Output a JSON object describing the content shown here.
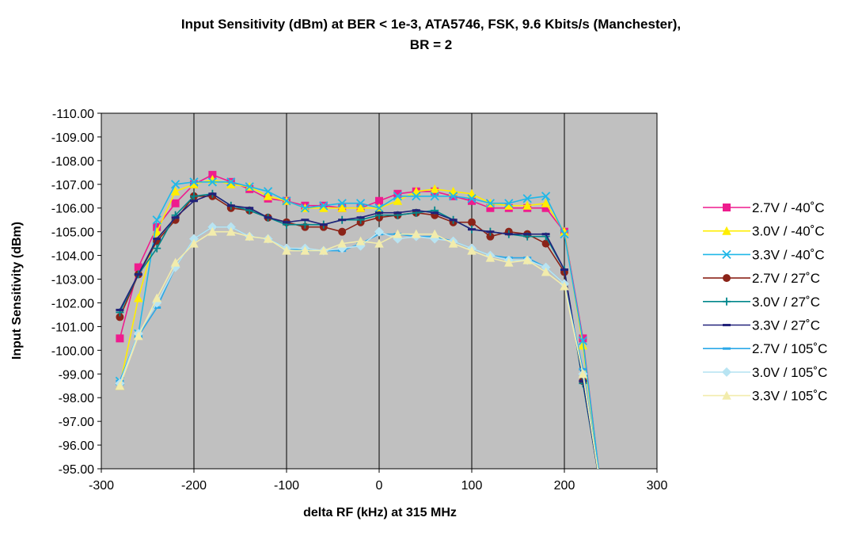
{
  "chart_data": {
    "type": "line",
    "title_line1": "Input Sensitivity (dBm) at BER < 1e-3, ATA5746, FSK, 9.6 Kbits/s (Manchester),",
    "title_line2": "BR = 2",
    "xlabel": "delta RF (kHz) at 315 MHz",
    "ylabel": "Input Sensitivity (dBm)",
    "xlim": [
      -300,
      300
    ],
    "ylim": [
      -95,
      -110
    ],
    "y_reversed": true,
    "x_ticks": [
      "-300",
      "-200",
      "-100",
      "0",
      "100",
      "200",
      "300"
    ],
    "x_tick_values": [
      -300,
      -200,
      -100,
      0,
      100,
      200,
      300
    ],
    "y_ticks": [
      "-110.00",
      "-109.00",
      "-108.00",
      "-107.00",
      "-106.00",
      "-105.00",
      "-104.00",
      "-103.00",
      "-102.00",
      "-101.00",
      "-100.00",
      "-99.00",
      "-98.00",
      "-97.00",
      "-96.00",
      "-95.00"
    ],
    "y_tick_values": [
      -110,
      -109,
      -108,
      -107,
      -106,
      -105,
      -104,
      -103,
      -102,
      -101,
      -100,
      -99,
      -98,
      -97,
      -96,
      -95
    ],
    "grid": "vertical",
    "plot_background": "#c0c0c0",
    "legend_position": "right",
    "x": [
      -280,
      -260,
      -240,
      -220,
      -200,
      -180,
      -160,
      -140,
      -120,
      -100,
      -80,
      -60,
      -40,
      -20,
      0,
      20,
      40,
      60,
      80,
      100,
      120,
      140,
      160,
      180,
      200,
      220,
      240
    ],
    "series": [
      {
        "name": "2.7V / -40˚C",
        "color": "#ee1c8e",
        "marker": "square",
        "values": [
          -100.5,
          -103.5,
          -105.2,
          -106.2,
          -107.0,
          -107.4,
          -107.1,
          -106.8,
          -106.4,
          -106.3,
          -106.1,
          -106.1,
          -106.0,
          -106.0,
          -106.3,
          -106.6,
          -106.7,
          -106.7,
          -106.5,
          -106.3,
          -106.0,
          -106.0,
          -106.0,
          -106.0,
          -105.0,
          -100.5,
          -94.0
        ]
      },
      {
        "name": "3.0V / -40˚C",
        "color": "#ffee00",
        "marker": "triangle",
        "values": [
          -98.5,
          -102.2,
          -105.0,
          -106.7,
          -107.0,
          -107.2,
          -107.0,
          -106.9,
          -106.5,
          -106.3,
          -106.0,
          -106.0,
          -106.0,
          -106.0,
          -106.0,
          -106.3,
          -106.7,
          -106.8,
          -106.7,
          -106.6,
          -106.2,
          -106.1,
          -106.1,
          -106.2,
          -105.0,
          -100.2,
          -94.0
        ]
      },
      {
        "name": "3.3V / -40˚C",
        "color": "#20b8e8",
        "marker": "x",
        "values": [
          -98.7,
          -100.7,
          -105.5,
          -107.0,
          -107.1,
          -107.1,
          -107.1,
          -106.9,
          -106.7,
          -106.3,
          -106.0,
          -106.1,
          -106.2,
          -106.2,
          -106.0,
          -106.5,
          -106.5,
          -106.5,
          -106.5,
          -106.4,
          -106.2,
          -106.2,
          -106.4,
          -106.5,
          -104.9,
          -100.4,
          -94.0
        ]
      },
      {
        "name": "2.7V / 27˚C",
        "color": "#8b2318",
        "marker": "circle",
        "values": [
          -101.4,
          -103.2,
          -104.6,
          -105.5,
          -106.5,
          -106.5,
          -106.0,
          -105.9,
          -105.6,
          -105.4,
          -105.2,
          -105.2,
          -105.0,
          -105.4,
          -105.6,
          -105.7,
          -105.8,
          -105.7,
          -105.4,
          -105.4,
          -104.8,
          -105.0,
          -104.9,
          -104.5,
          -103.3,
          -98.7,
          -94.0
        ]
      },
      {
        "name": "3.0V / 27˚C",
        "color": "#00868b",
        "marker": "plus",
        "values": [
          -101.6,
          -103.2,
          -104.3,
          -105.7,
          -106.5,
          -106.6,
          -106.1,
          -105.9,
          -105.6,
          -105.3,
          -105.3,
          -105.3,
          -105.5,
          -105.5,
          -105.7,
          -105.7,
          -105.8,
          -105.9,
          -105.5,
          -105.1,
          -105.0,
          -104.9,
          -104.8,
          -104.8,
          -103.4,
          -98.6,
          -94.0
        ]
      },
      {
        "name": "3.3V / 27˚C",
        "color": "#22227a",
        "marker": "dash",
        "values": [
          -101.7,
          -103.2,
          -104.7,
          -105.6,
          -106.3,
          -106.6,
          -106.1,
          -106.0,
          -105.6,
          -105.4,
          -105.5,
          -105.3,
          -105.5,
          -105.6,
          -105.8,
          -105.8,
          -105.9,
          -105.8,
          -105.5,
          -105.1,
          -105.0,
          -104.9,
          -104.9,
          -104.9,
          -103.4,
          -98.7,
          -94.0
        ]
      },
      {
        "name": "2.7V / 105˚C",
        "color": "#2aa8e8",
        "marker": "dash",
        "values": [
          -98.7,
          -100.6,
          -101.8,
          -103.5,
          -104.7,
          -105.2,
          -105.2,
          -104.8,
          -104.7,
          -104.3,
          -104.2,
          -104.2,
          -104.2,
          -104.5,
          -104.9,
          -104.9,
          -104.8,
          -104.8,
          -104.6,
          -104.3,
          -104.0,
          -103.9,
          -103.9,
          -103.5,
          -102.8,
          -99.2,
          -94.0
        ]
      },
      {
        "name": "3.0V / 105˚C",
        "color": "#b8e4f2",
        "marker": "diamond",
        "values": [
          -98.6,
          -100.7,
          -102.0,
          -103.5,
          -104.7,
          -105.2,
          -105.2,
          -104.8,
          -104.7,
          -104.3,
          -104.3,
          -104.2,
          -104.3,
          -104.4,
          -105.0,
          -104.7,
          -104.8,
          -104.7,
          -104.6,
          -104.3,
          -104.0,
          -103.8,
          -103.8,
          -103.5,
          -102.8,
          -99.0,
          -94.0
        ]
      },
      {
        "name": "3.3V / 105˚C",
        "color": "#f2ecac",
        "marker": "triangle",
        "values": [
          -98.5,
          -100.6,
          -102.2,
          -103.7,
          -104.5,
          -105.0,
          -105.0,
          -104.8,
          -104.7,
          -104.2,
          -104.2,
          -104.2,
          -104.5,
          -104.6,
          -104.5,
          -104.9,
          -104.9,
          -104.9,
          -104.5,
          -104.2,
          -103.9,
          -103.7,
          -103.8,
          -103.3,
          -102.7,
          -99.0,
          -94.0
        ]
      }
    ]
  }
}
